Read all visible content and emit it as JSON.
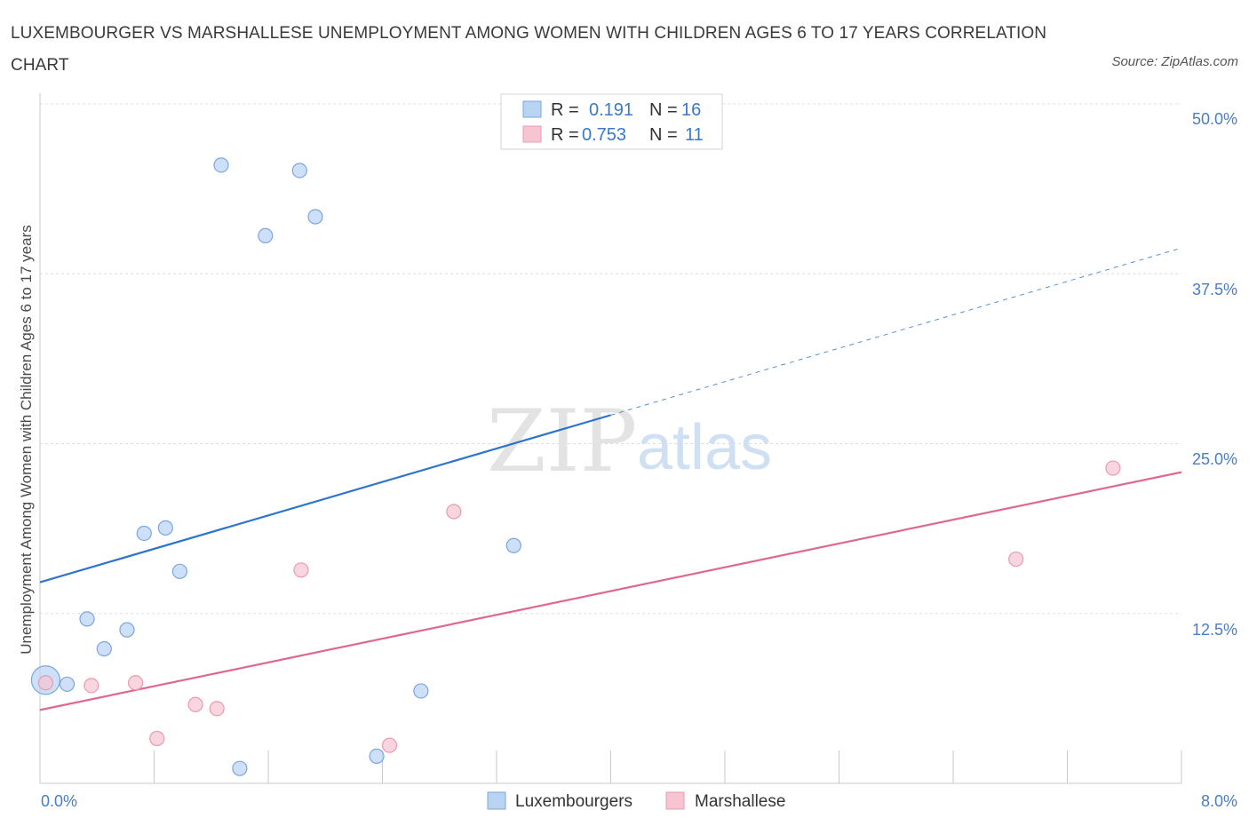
{
  "title": "LUXEMBOURGER VS MARSHALLESE UNEMPLOYMENT AMONG WOMEN WITH CHILDREN AGES 6 TO 17 YEARS CORRELATION CHART",
  "source": "Source: ZipAtlas.com",
  "watermark": {
    "zip": "ZIP",
    "atlas": "atlas"
  },
  "legend": {
    "rows": [
      {
        "r_label": "R =",
        "r_value": "0.191",
        "n_label": "N =",
        "n_value": "16"
      },
      {
        "r_label": "R =",
        "r_value": "0.753",
        "n_label": "N =",
        "n_value": "11"
      }
    ]
  },
  "colors": {
    "lux_fill": "#b9d3f3",
    "lux_stroke": "#7aa6de",
    "lux_line": "#2f74cc",
    "mar_fill": "#f7c5d2",
    "mar_stroke": "#e99ab0",
    "mar_line": "#e0688f",
    "tick_text": "#4a7cc9",
    "grid": "#dddddd"
  },
  "chart_data": {
    "type": "scatter",
    "title": "LUXEMBOURGER VS MARSHALLESE UNEMPLOYMENT AMONG WOMEN WITH CHILDREN AGES 6 TO 17 YEARS CORRELATION CHART",
    "xlabel": "",
    "ylabel": "Unemployment Among Women with Children Ages 6 to 17 years",
    "xlim": [
      0,
      8
    ],
    "ylim": [
      0,
      50
    ],
    "x_tick_labels": [
      "0.0%",
      "8.0%"
    ],
    "y_ticks": [
      12.5,
      25.0,
      37.5,
      50.0
    ],
    "y_tick_labels": [
      "12.5%",
      "25.0%",
      "37.5%",
      "50.0%"
    ],
    "grid": true,
    "legend_position": "top-center",
    "series": [
      {
        "name": "Luxembourgers",
        "r": 0.191,
        "n": 16,
        "points": [
          {
            "x": 0.04,
            "y": 7.6,
            "big": true
          },
          {
            "x": 0.19,
            "y": 7.3
          },
          {
            "x": 0.33,
            "y": 12.1
          },
          {
            "x": 0.45,
            "y": 9.9
          },
          {
            "x": 0.61,
            "y": 11.3
          },
          {
            "x": 0.73,
            "y": 18.4
          },
          {
            "x": 0.88,
            "y": 18.8
          },
          {
            "x": 0.98,
            "y": 15.6
          },
          {
            "x": 1.27,
            "y": 45.5
          },
          {
            "x": 1.4,
            "y": 1.1
          },
          {
            "x": 1.58,
            "y": 40.3
          },
          {
            "x": 1.82,
            "y": 45.1
          },
          {
            "x": 1.93,
            "y": 41.7
          },
          {
            "x": 2.36,
            "y": 2.0
          },
          {
            "x": 2.67,
            "y": 6.8
          },
          {
            "x": 3.32,
            "y": 17.5
          }
        ],
        "trend": {
          "x0": 0.0,
          "y0": 14.8,
          "x1": 4.0,
          "y1": 27.1,
          "dash_to_x": 8.0,
          "dash_to_y": 39.4
        }
      },
      {
        "name": "Marshallese",
        "r": 0.753,
        "n": 11,
        "points": [
          {
            "x": 0.04,
            "y": 7.4
          },
          {
            "x": 0.36,
            "y": 7.2
          },
          {
            "x": 0.67,
            "y": 7.4
          },
          {
            "x": 0.82,
            "y": 3.3
          },
          {
            "x": 1.09,
            "y": 5.8
          },
          {
            "x": 1.24,
            "y": 5.5
          },
          {
            "x": 1.83,
            "y": 15.7
          },
          {
            "x": 2.45,
            "y": 2.8
          },
          {
            "x": 2.9,
            "y": 20.0
          },
          {
            "x": 6.84,
            "y": 16.5
          },
          {
            "x": 7.52,
            "y": 23.2
          }
        ],
        "trend": {
          "x0": 0.0,
          "y0": 5.4,
          "x1": 8.0,
          "y1": 22.9
        }
      }
    ]
  }
}
